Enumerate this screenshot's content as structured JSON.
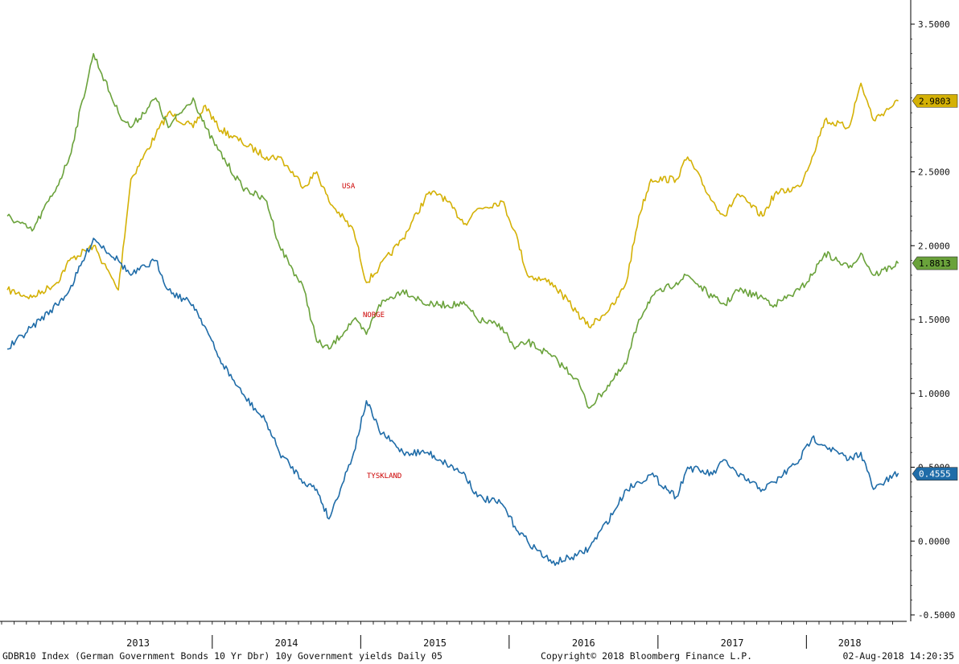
{
  "chart_data": {
    "type": "line",
    "ylim": [
      -0.5,
      3.5
    ],
    "y_ticks": [
      "3.5000",
      "2.5000",
      "2.0000",
      "1.5000",
      "1.0000",
      "0.5000",
      "0.0000",
      "-0.5000"
    ],
    "x_year_labels": [
      "2013",
      "2014",
      "2015",
      "2016",
      "2017",
      "2018"
    ],
    "grid": false,
    "series": [
      {
        "name": "USA",
        "color": "#d4b106",
        "last_value": "2.9803",
        "x": [
          "2012-08",
          "2012-10",
          "2012-12",
          "2013-01",
          "2013-03",
          "2013-05",
          "2013-06",
          "2013-08",
          "2013-09",
          "2013-11",
          "2013-12",
          "2014-01",
          "2014-03",
          "2014-05",
          "2014-06",
          "2014-08",
          "2014-09",
          "2014-10",
          "2014-12",
          "2015-01",
          "2015-02",
          "2015-04",
          "2015-06",
          "2015-07",
          "2015-09",
          "2015-10",
          "2015-12",
          "2016-01",
          "2016-02",
          "2016-04",
          "2016-06",
          "2016-07",
          "2016-09",
          "2016-10",
          "2016-11",
          "2016-12",
          "2017-02",
          "2017-03",
          "2017-05",
          "2017-06",
          "2017-07",
          "2017-09",
          "2017-10",
          "2017-12",
          "2018-01",
          "2018-02",
          "2018-04",
          "2018-05",
          "2018-06",
          "2018-08"
        ],
        "y": [
          1.7,
          1.65,
          1.75,
          1.9,
          2.0,
          1.7,
          2.45,
          2.75,
          2.9,
          2.8,
          2.95,
          2.8,
          2.7,
          2.6,
          2.6,
          2.4,
          2.5,
          2.3,
          2.1,
          1.75,
          1.85,
          2.05,
          2.35,
          2.35,
          2.15,
          2.25,
          2.3,
          2.1,
          1.8,
          1.75,
          1.55,
          1.45,
          1.6,
          1.75,
          2.2,
          2.45,
          2.45,
          2.6,
          2.3,
          2.2,
          2.35,
          2.2,
          2.35,
          2.4,
          2.6,
          2.85,
          2.8,
          3.1,
          2.85,
          2.98
        ]
      },
      {
        "name": "NORGE",
        "color": "#6aa23b",
        "last_value": "1.8813",
        "x": [
          "2012-08",
          "2012-10",
          "2012-12",
          "2013-01",
          "2013-03",
          "2013-05",
          "2013-06",
          "2013-08",
          "2013-09",
          "2013-11",
          "2013-12",
          "2014-01",
          "2014-03",
          "2014-05",
          "2014-06",
          "2014-08",
          "2014-09",
          "2014-10",
          "2014-12",
          "2015-01",
          "2015-02",
          "2015-04",
          "2015-06",
          "2015-07",
          "2015-09",
          "2015-10",
          "2015-12",
          "2016-01",
          "2016-02",
          "2016-04",
          "2016-06",
          "2016-07",
          "2016-09",
          "2016-10",
          "2016-11",
          "2016-12",
          "2017-02",
          "2017-03",
          "2017-05",
          "2017-06",
          "2017-07",
          "2017-09",
          "2017-10",
          "2017-12",
          "2018-01",
          "2018-02",
          "2018-04",
          "2018-05",
          "2018-06",
          "2018-08"
        ],
        "y": [
          2.2,
          2.1,
          2.4,
          2.6,
          3.3,
          2.9,
          2.8,
          3.0,
          2.8,
          3.0,
          2.8,
          2.65,
          2.4,
          2.3,
          2.0,
          1.7,
          1.35,
          1.3,
          1.5,
          1.4,
          1.6,
          1.7,
          1.6,
          1.6,
          1.6,
          1.5,
          1.45,
          1.3,
          1.35,
          1.25,
          1.1,
          0.9,
          1.1,
          1.2,
          1.5,
          1.65,
          1.75,
          1.8,
          1.65,
          1.6,
          1.7,
          1.65,
          1.6,
          1.7,
          1.8,
          1.95,
          1.85,
          1.95,
          1.8,
          1.88
        ]
      },
      {
        "name": "TYSKLAND",
        "color": "#1f6ca8",
        "last_value": "0.4555",
        "x": [
          "2012-08",
          "2012-10",
          "2012-12",
          "2013-01",
          "2013-03",
          "2013-05",
          "2013-06",
          "2013-08",
          "2013-09",
          "2013-11",
          "2013-12",
          "2014-01",
          "2014-03",
          "2014-05",
          "2014-06",
          "2014-08",
          "2014-09",
          "2014-10",
          "2014-12",
          "2015-01",
          "2015-02",
          "2015-04",
          "2015-06",
          "2015-07",
          "2015-09",
          "2015-10",
          "2015-12",
          "2016-01",
          "2016-02",
          "2016-04",
          "2016-06",
          "2016-07",
          "2016-09",
          "2016-10",
          "2016-11",
          "2016-12",
          "2017-02",
          "2017-03",
          "2017-05",
          "2017-06",
          "2017-07",
          "2017-09",
          "2017-10",
          "2017-12",
          "2018-01",
          "2018-02",
          "2018-04",
          "2018-05",
          "2018-06",
          "2018-08"
        ],
        "y": [
          1.3,
          1.45,
          1.6,
          1.7,
          2.05,
          1.9,
          1.8,
          1.9,
          1.7,
          1.6,
          1.45,
          1.25,
          1.0,
          0.8,
          0.6,
          0.4,
          0.35,
          0.15,
          0.6,
          0.95,
          0.75,
          0.6,
          0.6,
          0.55,
          0.45,
          0.3,
          0.25,
          0.1,
          0.0,
          -0.15,
          -0.1,
          -0.05,
          0.2,
          0.35,
          0.4,
          0.45,
          0.3,
          0.5,
          0.45,
          0.55,
          0.45,
          0.35,
          0.4,
          0.55,
          0.7,
          0.65,
          0.55,
          0.6,
          0.35,
          0.46
        ]
      }
    ]
  },
  "footer": {
    "left": "GDBR10 Index (German Government Bonds 10 Yr Dbr) 10y Government yields  Daily 05",
    "middle": "Copyright© 2018 Bloomberg Finance L.P.",
    "right": "02-Aug-2018 14:20:35"
  }
}
